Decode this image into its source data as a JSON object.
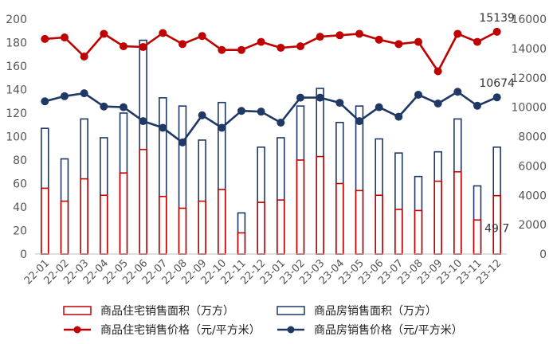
{
  "chart_data": {
    "type": "bar+line",
    "categories": [
      "22-01",
      "22-02",
      "22-03",
      "22-04",
      "22-05",
      "22-06",
      "22-07",
      "22-08",
      "22-09",
      "22-10",
      "22-11",
      "22-12",
      "23-01",
      "23-02",
      "23-03",
      "23-04",
      "23-05",
      "23-06",
      "23-07",
      "23-08",
      "23-09",
      "23-10",
      "23-11",
      "23-12"
    ],
    "left_axis": {
      "ylim": [
        0,
        200
      ],
      "ticks": [
        "0",
        "20",
        "40",
        "60",
        "80",
        "100",
        "120",
        "140",
        "160",
        "180",
        "200"
      ]
    },
    "right_axis": {
      "ylim": [
        0,
        16000
      ],
      "ticks": [
        "0",
        "2000",
        "4000",
        "6000",
        "8000",
        "10000",
        "12000",
        "14000",
        "16000"
      ]
    },
    "series": [
      {
        "name": "商品住宅销售面积（万方）",
        "kind": "bar",
        "axis": "left",
        "color": "#c00000",
        "values": [
          56,
          45,
          64,
          50,
          69,
          89,
          49,
          39,
          45,
          55,
          18,
          44,
          46,
          80,
          83,
          60,
          54,
          50,
          38,
          37,
          62,
          70,
          29,
          49.7
        ]
      },
      {
        "name": "商品房销售面积（万方）",
        "kind": "bar",
        "axis": "left",
        "color": "#1f3864",
        "values": [
          107,
          81,
          115,
          99,
          120,
          182,
          133,
          126,
          97,
          129,
          35,
          91,
          99,
          126,
          141,
          112,
          126,
          98,
          86,
          66,
          87,
          115,
          58,
          91
        ]
      },
      {
        "name": "商品住宅销售价格（元/平方米）",
        "kind": "line",
        "axis": "right",
        "color": "#c00000",
        "values": [
          14650,
          14750,
          13450,
          15000,
          14150,
          14100,
          15050,
          14300,
          14850,
          13900,
          13900,
          14450,
          14050,
          14150,
          14800,
          14900,
          15000,
          14600,
          14300,
          14450,
          12450,
          15000,
          14450,
          15139
        ]
      },
      {
        "name": "商品房销售价格（元/平方米）",
        "kind": "line",
        "axis": "right",
        "color": "#1f3864",
        "values": [
          10400,
          10750,
          10950,
          10050,
          10000,
          9050,
          8600,
          7600,
          9450,
          8600,
          9750,
          9700,
          8950,
          10650,
          10650,
          10300,
          9050,
          10000,
          9350,
          10850,
          10250,
          11050,
          10100,
          10674
        ]
      }
    ],
    "annotations": [
      {
        "label": "15139",
        "series": 2,
        "index": 23
      },
      {
        "label": "10674",
        "series": 3,
        "index": 23
      },
      {
        "label": "49.7",
        "series": 0,
        "index": 23
      }
    ],
    "legend_position": "bottom",
    "grid": false
  }
}
